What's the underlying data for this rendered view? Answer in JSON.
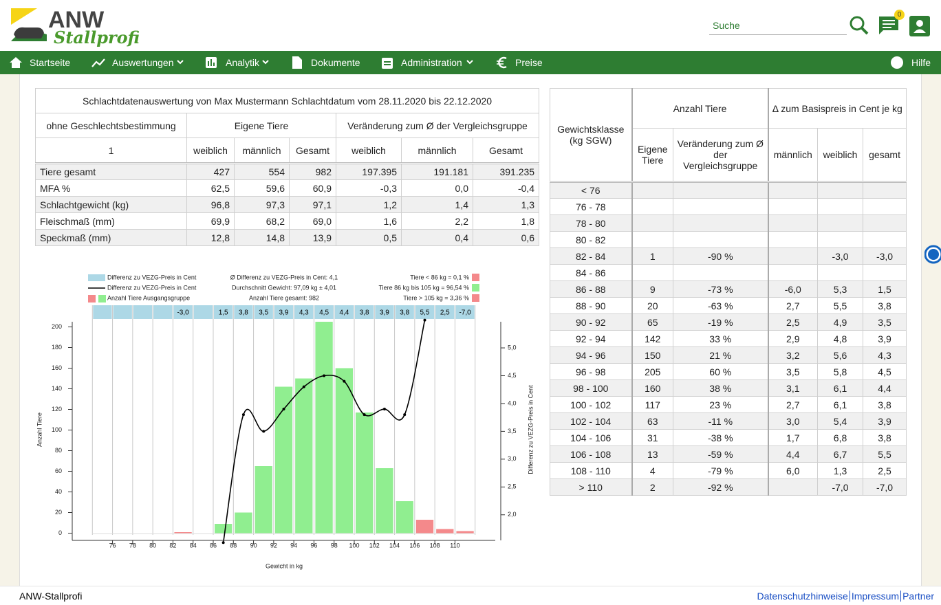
{
  "header": {
    "logo_main": "ANW",
    "logo_sub": "Stallprofi",
    "search_placeholder": "Suche",
    "notification_count": "0"
  },
  "nav": {
    "items": [
      "Startseite",
      "Auswertungen",
      "Analytik",
      "Dokumente",
      "Administration",
      "Preise"
    ],
    "help": "Hilfe"
  },
  "summary_table": {
    "title": "Schlachtdatenauswertung von Max Mustermann Schlachtdatum vom 28.11.2020 bis 22.12.2020",
    "group_header": [
      "ohne Geschlechtsbestimmung",
      "Eigene Tiere",
      "Veränderung zum Ø der Vergleichsgruppe"
    ],
    "sub_header": [
      "1",
      "weiblich",
      "männlich",
      "Gesamt",
      "weiblich",
      "männlich",
      "Gesamt"
    ],
    "rows": [
      [
        "Tiere gesamt",
        "427",
        "554",
        "982",
        "197.395",
        "191.181",
        "391.235"
      ],
      [
        "MFA %",
        "62,5",
        "59,6",
        "60,9",
        "-0,3",
        "0,0",
        "-0,4"
      ],
      [
        "Schlachtgewicht (kg)",
        "96,8",
        "97,3",
        "97,1",
        "1,2",
        "1,4",
        "1,3"
      ],
      [
        "Fleischmaß (mm)",
        "69,9",
        "68,2",
        "69,0",
        "1,6",
        "2,2",
        "1,8"
      ],
      [
        "Speckmaß (mm)",
        "12,8",
        "14,8",
        "13,9",
        "0,5",
        "0,4",
        "0,6"
      ]
    ]
  },
  "class_table": {
    "group_header": [
      "Gewichtsklasse (kg SGW)",
      "Anzahl Tiere",
      "Δ zum Basispreis in Cent je kg"
    ],
    "sub_header": [
      "Eigene Tiere",
      "Veränderung zum Ø der Vergleichsgruppe",
      "männlich",
      "weiblich",
      "gesamt"
    ],
    "rows": [
      [
        "< 76",
        null,
        null,
        null,
        null,
        null
      ],
      [
        "76 - 78",
        null,
        null,
        null,
        null,
        null
      ],
      [
        "78 - 80",
        null,
        null,
        null,
        null,
        null
      ],
      [
        "80 - 82",
        null,
        null,
        null,
        null,
        null
      ],
      [
        "82 - 84",
        "1",
        "-90 %",
        null,
        "-3,0",
        "-3,0"
      ],
      [
        "84 - 86",
        null,
        null,
        null,
        null,
        null
      ],
      [
        "86 - 88",
        "9",
        "-73 %",
        "-6,0",
        "5,3",
        "1,5"
      ],
      [
        "88 - 90",
        "20",
        "-63 %",
        "2,7",
        "5,5",
        "3,8"
      ],
      [
        "90 - 92",
        "65",
        "-19 %",
        "2,5",
        "4,9",
        "3,5"
      ],
      [
        "92 - 94",
        "142",
        "33 %",
        "2,9",
        "4,8",
        "3,9"
      ],
      [
        "94 - 96",
        "150",
        "21 %",
        "3,2",
        "5,6",
        "4,3"
      ],
      [
        "96 - 98",
        "205",
        "60 %",
        "3,5",
        "5,8",
        "4,5"
      ],
      [
        "98 - 100",
        "160",
        "38 %",
        "3,1",
        "6,1",
        "4,4"
      ],
      [
        "100 - 102",
        "117",
        "23 %",
        "2,7",
        "6,1",
        "3,8"
      ],
      [
        "102 - 104",
        "63",
        "-11 %",
        "3,0",
        "5,4",
        "3,9"
      ],
      [
        "104 - 106",
        "31",
        "-38 %",
        "1,7",
        "6,8",
        "3,8"
      ],
      [
        "106 - 108",
        "13",
        "-59 %",
        "4,4",
        "6,7",
        "5,5"
      ],
      [
        "108 - 110",
        "4",
        "-79 %",
        "6,0",
        "1,3",
        "2,5"
      ],
      [
        "> 110",
        "2",
        "-92 %",
        null,
        "-7,0",
        "-7,0"
      ]
    ]
  },
  "chart_data": {
    "type": "bar",
    "xlabel": "Gewicht in kg",
    "ylabel": "Anzahl Tiere",
    "y2label": "Differenz zu VEZG-Preis in Cent",
    "xlim": [
      72,
      114
    ],
    "xticks": [
      76,
      78,
      80,
      82,
      84,
      86,
      88,
      90,
      92,
      94,
      96,
      98,
      100,
      102,
      104,
      106,
      108,
      110
    ],
    "ylim": [
      -7,
      205
    ],
    "yticks": [
      0,
      20,
      40,
      60,
      80,
      100,
      120,
      140,
      160,
      180,
      200
    ],
    "y2lim": [
      1.54,
      5.47
    ],
    "y2ticks": [
      {
        "value": 2,
        "label": "2,0"
      },
      {
        "value": 2.5,
        "label": "2,5"
      },
      {
        "value": 3,
        "label": "3,0"
      },
      {
        "value": 3.5,
        "label": "3,5"
      },
      {
        "value": 4,
        "label": "4,0"
      },
      {
        "value": 4.5,
        "label": "4,5"
      },
      {
        "value": 5,
        "label": "5,0"
      }
    ],
    "grid": true,
    "bins": [
      74,
      76,
      78,
      80,
      82,
      84,
      86,
      88,
      90,
      92,
      94,
      96,
      98,
      100,
      102,
      104,
      106,
      108,
      110,
      112
    ],
    "bars": {
      "name": "Anzahl Tiere Ausgangsgruppe",
      "counts": [
        0,
        0,
        0,
        0,
        1,
        0,
        9,
        20,
        65,
        142,
        150,
        205,
        160,
        117,
        63,
        31,
        13,
        4,
        2
      ],
      "colors": [
        "#f4898b",
        "#f4898b",
        "#f4898b",
        "#f4898b",
        "#f4898b",
        "#f4898b",
        "#90ee90",
        "#90ee90",
        "#90ee90",
        "#90ee90",
        "#90ee90",
        "#90ee90",
        "#90ee90",
        "#90ee90",
        "#90ee90",
        "#90ee90",
        "#f4898b",
        "#f4898b",
        "#f4898b"
      ],
      "legend_colors": [
        "#f4898b",
        "#90ee90"
      ]
    },
    "label_band": {
      "name": "Differenz zu VEZG-Preis in Cent",
      "color": "#add8e6",
      "labels": [
        null,
        null,
        null,
        null,
        "-3,0",
        null,
        "1,5",
        "3,8",
        "3,5",
        "3,9",
        "4,3",
        "4,5",
        "4,4",
        "3,8",
        "3,9",
        "3,8",
        "5,5",
        "2,5",
        "-7,0"
      ]
    },
    "line": {
      "name": "Differenz zu VEZG-Preis in Cent",
      "color": "#000000",
      "axis": "y2",
      "x": [
        87,
        89,
        91,
        93,
        95,
        97,
        99,
        101,
        103,
        105,
        107
      ],
      "values": [
        1.5,
        3.8,
        3.5,
        3.9,
        4.3,
        4.5,
        4.4,
        3.8,
        3.9,
        3.8,
        5.5
      ]
    },
    "stats": [
      "Ø Differenz zu VEZG-Preis in Cent: 4,1",
      "Durchschnitt Gewicht: 97,09 kg ± 4,01",
      "Anzahl Tiere gesamt: 982"
    ],
    "share_notes": [
      {
        "text": "Tiere < 86 kg = 0,1 %",
        "color": "#f4898b"
      },
      {
        "text": "Tiere 86 kg bis 105 kg = 96,54 %",
        "color": "#90ee90"
      },
      {
        "text": "Tiere > 105 kg = 3,36 %",
        "color": "#f4898b"
      }
    ]
  },
  "footer": {
    "brand": "ANW-Stallprofi",
    "links": [
      "Datenschutzhinweise",
      "Impressum",
      "Partner"
    ]
  }
}
